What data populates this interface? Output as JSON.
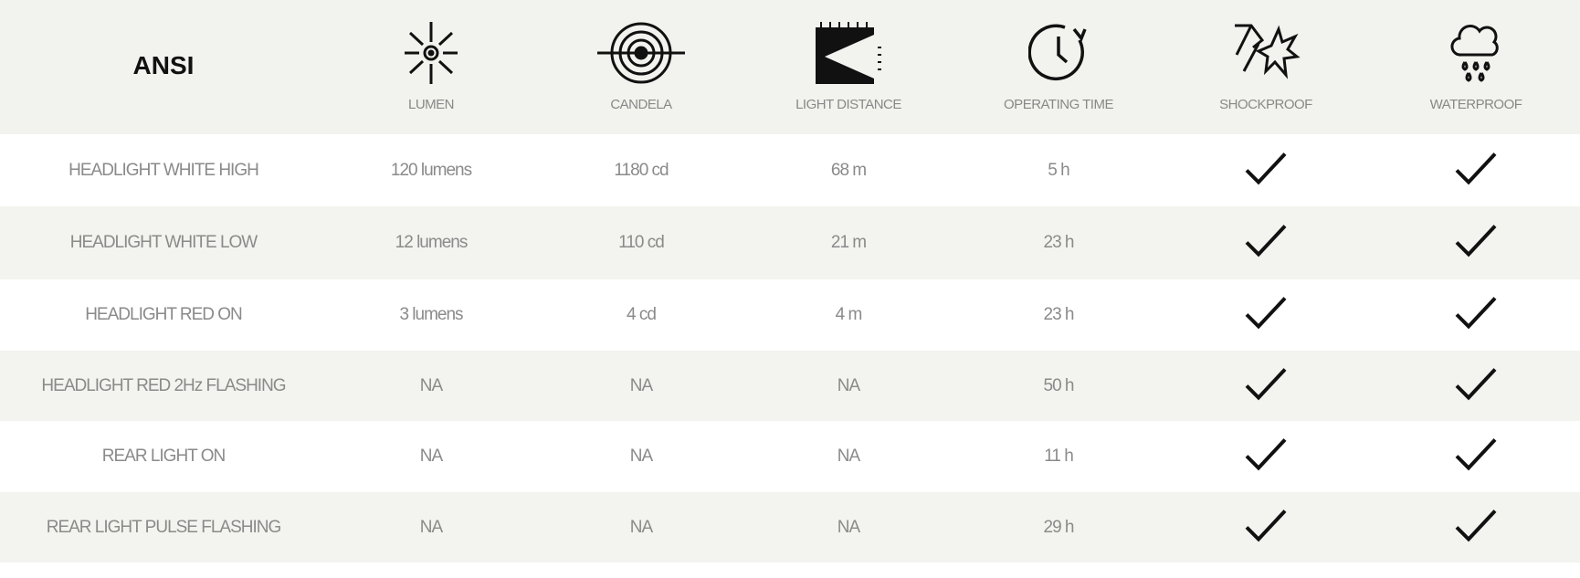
{
  "header": {
    "title": "ANSI",
    "columns": [
      {
        "label": "LUMEN",
        "icon": "sun-icon"
      },
      {
        "label": "CANDELA",
        "icon": "target-icon"
      },
      {
        "label": "LIGHT DISTANCE",
        "icon": "light-beam-icon"
      },
      {
        "label": "OPERATING TIME",
        "icon": "clock-icon"
      },
      {
        "label": "SHOCKPROOF",
        "icon": "impact-icon"
      },
      {
        "label": "WATERPROOF",
        "icon": "rain-cloud-icon"
      }
    ]
  },
  "rows": [
    {
      "mode": "HEADLIGHT WHITE HIGH",
      "lumen": "120 lumens",
      "candela": "1180 cd",
      "distance": "68 m",
      "time": "5 h",
      "shockproof": true,
      "waterproof": true
    },
    {
      "mode": "HEADLIGHT WHITE LOW",
      "lumen": "12 lumens",
      "candela": "110 cd",
      "distance": "21 m",
      "time": "23 h",
      "shockproof": true,
      "waterproof": true
    },
    {
      "mode": "HEADLIGHT RED ON",
      "lumen": "3 lumens",
      "candela": "4 cd",
      "distance": "4 m",
      "time": "23 h",
      "shockproof": true,
      "waterproof": true
    },
    {
      "mode": "HEADLIGHT RED 2Hz FLASHING",
      "lumen": "NA",
      "candela": "NA",
      "distance": "NA",
      "time": "50 h",
      "shockproof": true,
      "waterproof": true
    },
    {
      "mode": "REAR LIGHT ON",
      "lumen": "NA",
      "candela": "NA",
      "distance": "NA",
      "time": "11 h",
      "shockproof": true,
      "waterproof": true
    },
    {
      "mode": "REAR LIGHT PULSE FLASHING",
      "lumen": "NA",
      "candela": "NA",
      "distance": "NA",
      "time": "29 h",
      "shockproof": true,
      "waterproof": true
    }
  ]
}
